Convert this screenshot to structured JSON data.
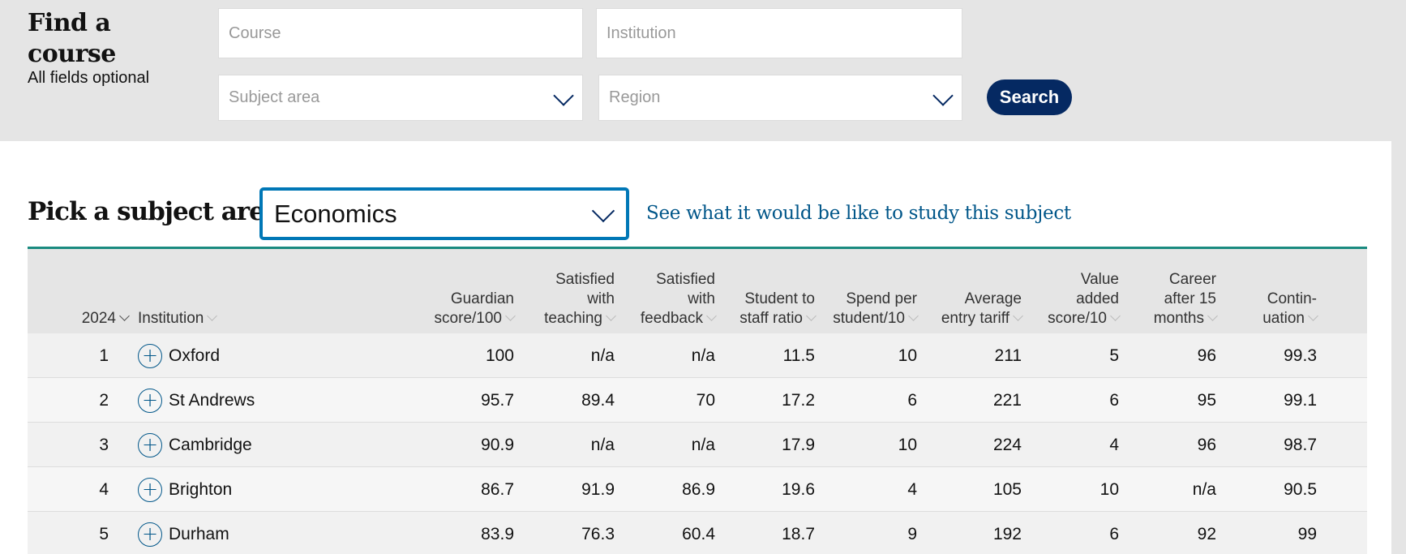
{
  "finder": {
    "title": "Find a course",
    "subtitle": "All fields optional",
    "course_placeholder": "Course",
    "institution_placeholder": "Institution",
    "subject_placeholder": "Subject area",
    "region_placeholder": "Region",
    "search_label": "Search"
  },
  "picker": {
    "label": "Pick a subject area",
    "selected": "Economics",
    "study_link": "See what it would be like to study this subject"
  },
  "table": {
    "columns": [
      "2024",
      "Institution",
      "Guardian score/100",
      "Satisfied with teaching",
      "Satisfied with feedback",
      "Student to staff ratio",
      "Spend per student/10",
      "Average entry tariff",
      "Value added score/10",
      "Career after 15 months",
      "Contin-uation"
    ],
    "rows": [
      [
        "1",
        "Oxford",
        "100",
        "n/a",
        "n/a",
        "11.5",
        "10",
        "211",
        "5",
        "96",
        "99.3"
      ],
      [
        "2",
        "St Andrews",
        "95.7",
        "89.4",
        "70",
        "17.2",
        "6",
        "221",
        "6",
        "95",
        "99.1"
      ],
      [
        "3",
        "Cambridge",
        "90.9",
        "n/a",
        "n/a",
        "17.9",
        "10",
        "224",
        "4",
        "96",
        "98.7"
      ],
      [
        "4",
        "Brighton",
        "86.7",
        "91.9",
        "86.9",
        "19.6",
        "4",
        "105",
        "10",
        "n/a",
        "90.5"
      ],
      [
        "5",
        "Durham",
        "83.9",
        "76.3",
        "60.4",
        "18.7",
        "9",
        "192",
        "6",
        "92",
        "99"
      ]
    ]
  },
  "icons": {
    "expand": "plus-circle-icon",
    "dropdown": "chevron-down-icon",
    "sort": "sort-chevron-icon"
  },
  "colors": {
    "brand": "#052962",
    "accent_rule": "#1a8a80",
    "select_border": "#0077b6",
    "link": "#005689"
  }
}
